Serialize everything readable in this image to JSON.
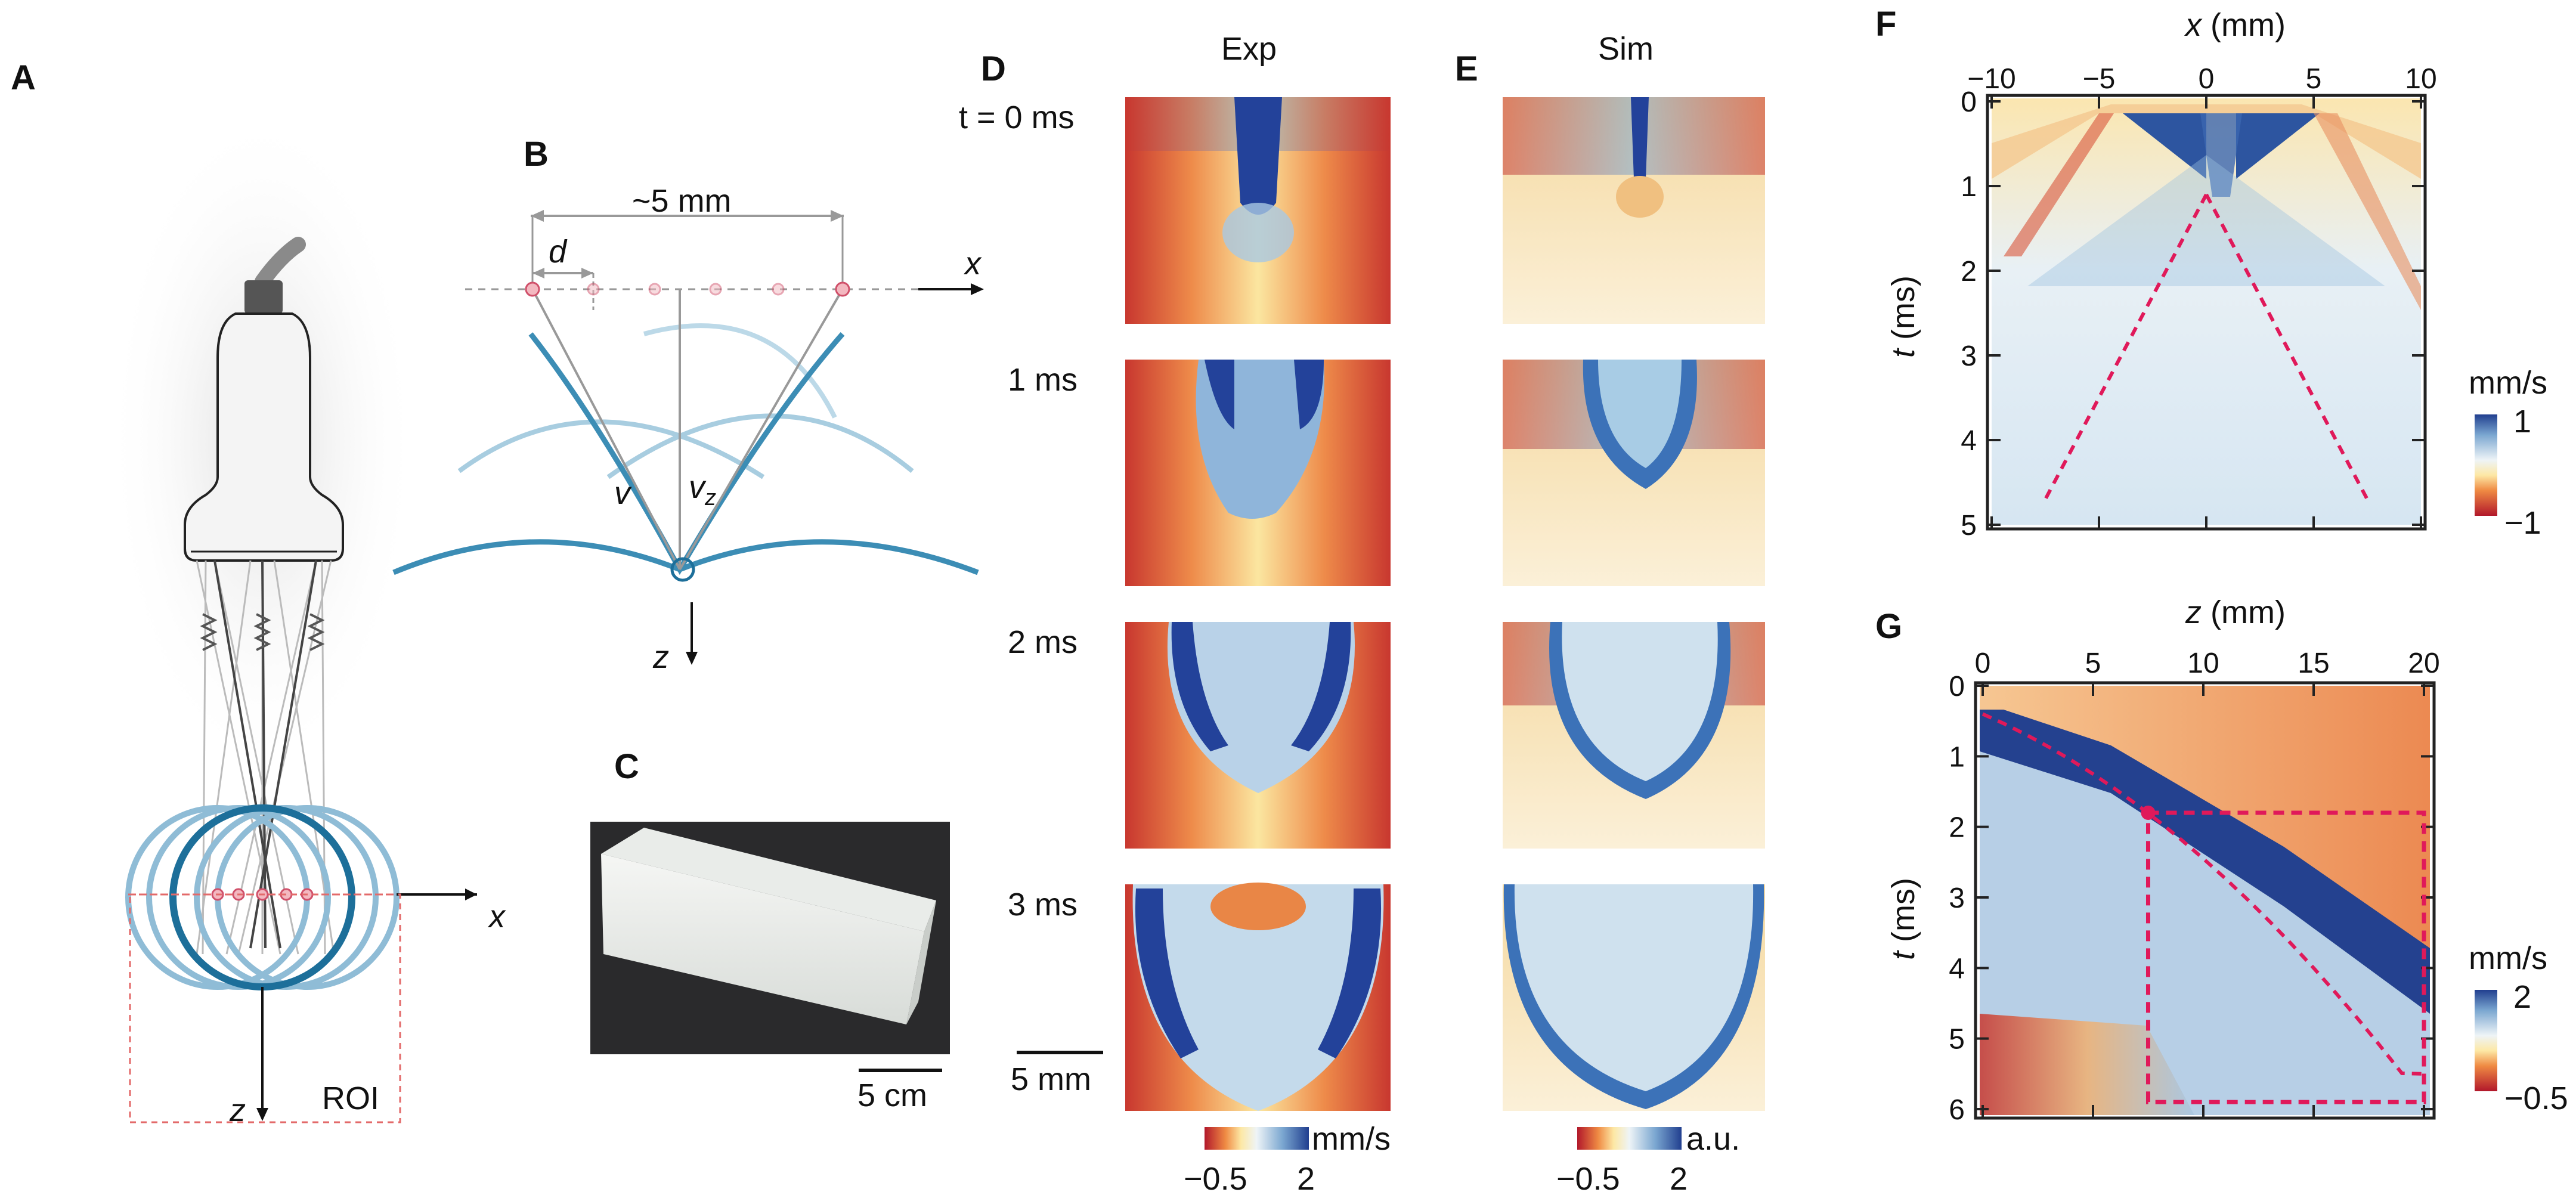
{
  "panels": {
    "a": "A",
    "b": "B",
    "c": "C",
    "d": "D",
    "e": "E",
    "f": "F",
    "g": "G"
  },
  "panel_a": {
    "x_axis": "x",
    "z_axis": "z",
    "roi": "ROI"
  },
  "panel_b": {
    "spacing": "~5 mm",
    "d": "d",
    "x": "x",
    "z": "z",
    "v": "v",
    "vz": "v",
    "vz_sub": "z"
  },
  "panel_c": {
    "scalebar": "5 cm"
  },
  "panel_d": {
    "title": "Exp",
    "time_labels": [
      "t = 0 ms",
      "1 ms",
      "2 ms",
      "3 ms"
    ],
    "scalebar": "5 mm",
    "colorbar": {
      "min": "−0.5",
      "max": "2",
      "unit": "mm/s"
    }
  },
  "panel_e": {
    "title": "Sim",
    "colorbar": {
      "min": "−0.5",
      "max": "2",
      "unit": "a.u."
    }
  },
  "colors": {
    "red": "#c8102e",
    "orange": "#f08a3c",
    "yellow": "#fbe9a6",
    "pale": "#eaf2f7",
    "light_blue": "#a6c8e0",
    "blue": "#2f5ea8",
    "dark_blue": "#1f3d8c",
    "teal": "#2e7fa8",
    "dash": "#e0195a"
  },
  "chart_data": [
    {
      "type": "heatmap",
      "panel": "F",
      "title": "",
      "xlabel": "x (mm)",
      "ylabel": "t (ms)",
      "x_ticks": [
        "−10",
        "−5",
        "0",
        "5",
        "10"
      ],
      "y_ticks": [
        "0",
        "1",
        "2",
        "3",
        "4",
        "5"
      ],
      "xlim": [
        -10,
        10
      ],
      "ylim": [
        0,
        5
      ],
      "colorbar": {
        "unit": "mm/s",
        "max": "1",
        "min": "−1"
      },
      "annotation": "dashed lines from t≈1.1 ms at x=0 to t≈4.7 ms at x≈±7.5 mm"
    },
    {
      "type": "heatmap",
      "panel": "G",
      "title": "",
      "xlabel": "z (mm)",
      "ylabel": "t (ms)",
      "x_ticks": [
        "0",
        "5",
        "10",
        "15",
        "20"
      ],
      "y_ticks": [
        "0",
        "1",
        "2",
        "3",
        "4",
        "5",
        "6"
      ],
      "xlim": [
        0,
        20
      ],
      "ylim": [
        0,
        6
      ],
      "colorbar": {
        "unit": "mm/s",
        "max": "2",
        "min": "−0.5"
      },
      "annotation": "dashed rectangle z 7.5–20 mm, t 1.8–5.9 ms"
    }
  ]
}
